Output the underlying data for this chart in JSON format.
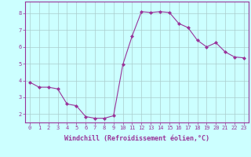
{
  "x": [
    0,
    1,
    2,
    3,
    4,
    5,
    6,
    7,
    8,
    9,
    10,
    11,
    12,
    13,
    14,
    15,
    16,
    17,
    18,
    19,
    20,
    21,
    22,
    23
  ],
  "y": [
    3.9,
    3.6,
    3.6,
    3.5,
    2.6,
    2.5,
    1.85,
    1.75,
    1.75,
    1.9,
    4.95,
    6.65,
    8.1,
    8.05,
    8.1,
    8.05,
    7.4,
    7.15,
    6.4,
    6.0,
    6.25,
    5.7,
    5.4,
    5.35
  ],
  "line_color": "#993399",
  "marker": "D",
  "marker_size": 2.0,
  "bg_color": "#ccffff",
  "grid_color": "#aacccc",
  "xlabel": "Windchill (Refroidissement éolien,°C)",
  "xlabel_color": "#993399",
  "xlim": [
    -0.5,
    23.5
  ],
  "ylim": [
    1.5,
    8.7
  ],
  "yticks": [
    2,
    3,
    4,
    5,
    6,
    7,
    8
  ],
  "xticks": [
    0,
    1,
    2,
    3,
    4,
    5,
    6,
    7,
    8,
    9,
    10,
    11,
    12,
    13,
    14,
    15,
    16,
    17,
    18,
    19,
    20,
    21,
    22,
    23
  ],
  "tick_color": "#993399",
  "spine_color": "#993399",
  "tick_fontsize": 5.0,
  "xlabel_fontsize": 6.0
}
